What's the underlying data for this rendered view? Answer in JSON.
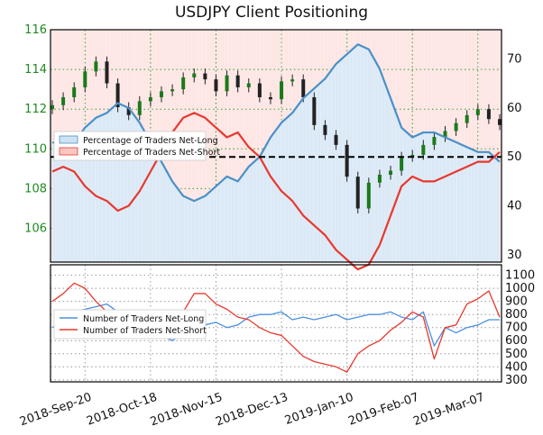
{
  "chart_data": [
    {
      "type": "line",
      "title": "USDJPY Client Positioning",
      "x_ticks": [
        "2018-Sep-20",
        "2018-Oct-18",
        "2018-Nov-15",
        "2018-Dec-13",
        "2019-Jan-10",
        "2019-Feb-07",
        "2019-Mar-07"
      ],
      "y_left": {
        "ticks": [
          106,
          108,
          110,
          112,
          114,
          116
        ],
        "range": [
          104.3,
          116
        ]
      },
      "y_right": {
        "ticks": [
          30,
          40,
          50,
          60,
          70
        ],
        "range": [
          28.5,
          76
        ]
      },
      "reference_line_right": 50,
      "grid": true,
      "legend_position": "center-left",
      "series": [
        {
          "name": "Percentage of Traders Net-Long",
          "axis": "right",
          "color": "#4a90c8",
          "values": [
            53,
            52,
            53,
            56,
            58,
            59,
            61,
            60,
            57,
            53,
            49,
            45,
            42,
            41,
            42,
            44,
            46,
            45,
            48,
            50,
            54,
            57,
            59,
            62,
            64,
            66,
            69,
            71,
            73,
            72,
            68,
            62,
            56,
            54,
            55,
            55,
            54,
            53,
            52,
            51,
            51,
            49
          ]
        },
        {
          "name": "Percentage of Traders Net-Short",
          "axis": "right",
          "color": "#e8382e",
          "values": [
            47,
            48,
            47,
            44,
            42,
            41,
            39,
            40,
            43,
            47,
            51,
            55,
            58,
            59,
            58,
            56,
            54,
            55,
            52,
            50,
            46,
            43,
            41,
            38,
            36,
            34,
            31,
            29,
            27,
            28,
            32,
            38,
            44,
            46,
            45,
            45,
            46,
            47,
            48,
            49,
            49,
            51
          ]
        },
        {
          "name": "USDJPY",
          "axis": "left",
          "type": "candlestick",
          "color": "#1a7a1a",
          "values": [
            112.2,
            112.6,
            113.1,
            113.9,
            114.4,
            113.3,
            112.1,
            111.7,
            112.4,
            112.6,
            112.9,
            113.0,
            113.6,
            113.8,
            113.5,
            112.9,
            113.7,
            113.1,
            113.3,
            112.6,
            112.5,
            113.4,
            113.5,
            112.6,
            111.2,
            110.7,
            110.2,
            108.6,
            107.0,
            108.3,
            108.7,
            108.9,
            109.6,
            109.7,
            110.2,
            110.6,
            110.9,
            111.3,
            111.7,
            112.0,
            111.5,
            111.2
          ]
        }
      ]
    },
    {
      "type": "line",
      "x_ticks": [
        "2018-Sep-20",
        "2018-Oct-18",
        "2018-Nov-15",
        "2018-Dec-13",
        "2019-Jan-10",
        "2019-Feb-07",
        "2019-Mar-07"
      ],
      "y_right": {
        "ticks": [
          300,
          400,
          500,
          600,
          700,
          800,
          900,
          1000,
          1100
        ],
        "range": [
          285,
          1180
        ]
      },
      "grid": true,
      "legend_position": "center-left",
      "series": [
        {
          "name": "Number of Traders Net-Long",
          "color": "#4a90e2",
          "values": [
            700,
            760,
            820,
            840,
            860,
            880,
            820,
            780,
            760,
            720,
            640,
            600,
            660,
            700,
            720,
            740,
            700,
            720,
            780,
            800,
            800,
            820,
            760,
            780,
            760,
            780,
            800,
            760,
            780,
            800,
            800,
            820,
            780,
            760,
            820,
            560,
            700,
            660,
            700,
            720,
            760,
            760
          ]
        },
        {
          "name": "Number of Traders Net-Short",
          "color": "#e8382e",
          "values": [
            900,
            960,
            1040,
            1000,
            900,
            820,
            760,
            720,
            700,
            680,
            700,
            740,
            820,
            960,
            960,
            880,
            840,
            780,
            760,
            700,
            660,
            640,
            560,
            480,
            440,
            420,
            400,
            360,
            500,
            560,
            600,
            680,
            740,
            820,
            780,
            460,
            700,
            720,
            880,
            920,
            980,
            780
          ]
        }
      ]
    }
  ],
  "legend": {
    "top": [
      "Percentage of Traders Net-Long",
      "Percentage of Traders Net-Short"
    ],
    "bottom": [
      "Number of Traders Net-Long",
      "Number of Traders Net-Short"
    ]
  }
}
